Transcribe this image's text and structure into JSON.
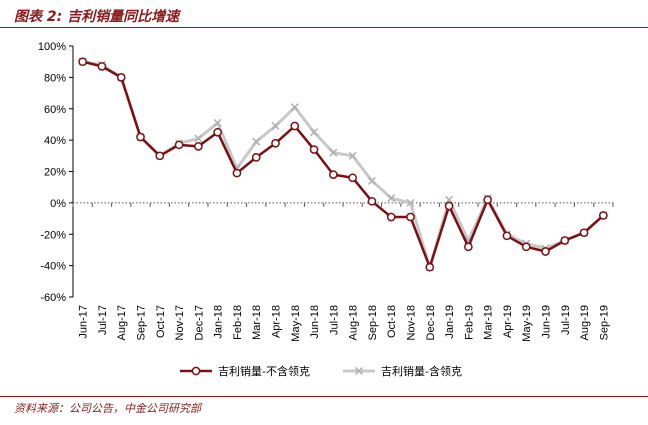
{
  "figure": {
    "title": "图表 2:  吉利销量同比增速",
    "source": "资料来源：公司公告，中金公司研究部"
  },
  "chart_data": {
    "type": "line",
    "title": "",
    "xlabel": "",
    "ylabel": "",
    "categories": [
      "Jun-17",
      "Jul-17",
      "Aug-17",
      "Sep-17",
      "Oct-17",
      "Nov-17",
      "Dec-17",
      "Jan-18",
      "Feb-18",
      "Mar-18",
      "Apr-18",
      "May-18",
      "Jun-18",
      "Jul-18",
      "Aug-18",
      "Sep-18",
      "Oct-18",
      "Nov-18",
      "Dec-18",
      "Jan-19",
      "Feb-19",
      "Mar-19",
      "Apr-19",
      "May-19",
      "Jun-19",
      "Jul-19",
      "Aug-19",
      "Sep-19"
    ],
    "ylim": [
      -60,
      100
    ],
    "yticks": [
      100,
      80,
      60,
      40,
      20,
      0,
      -20,
      -40,
      -60
    ],
    "ytick_labels": [
      "100%",
      "80%",
      "60%",
      "40%",
      "20%",
      "0%",
      "-20%",
      "-40%",
      "-60%"
    ],
    "grid": false,
    "legend_position": "bottom",
    "series": [
      {
        "name": "吉利销量-不含领克",
        "color": "#7a0f14",
        "marker": "circle",
        "values": [
          90,
          87,
          80,
          42,
          30,
          37,
          36,
          45,
          19,
          29,
          38,
          49,
          34,
          18,
          16,
          1,
          -9,
          -9,
          -41,
          -2,
          -28,
          2,
          -21,
          -28,
          -31,
          -24,
          -19,
          -8
        ]
      },
      {
        "name": "吉利销量-含领克",
        "color": "#c8c8c8",
        "marker": "x",
        "values": [
          90,
          88,
          80,
          42,
          30,
          38,
          41,
          51,
          22,
          39,
          49,
          61,
          45,
          32,
          30,
          14,
          3,
          0,
          -41,
          2,
          -24,
          3,
          -20,
          -26,
          -29,
          -24,
          -19,
          -8
        ]
      }
    ]
  }
}
